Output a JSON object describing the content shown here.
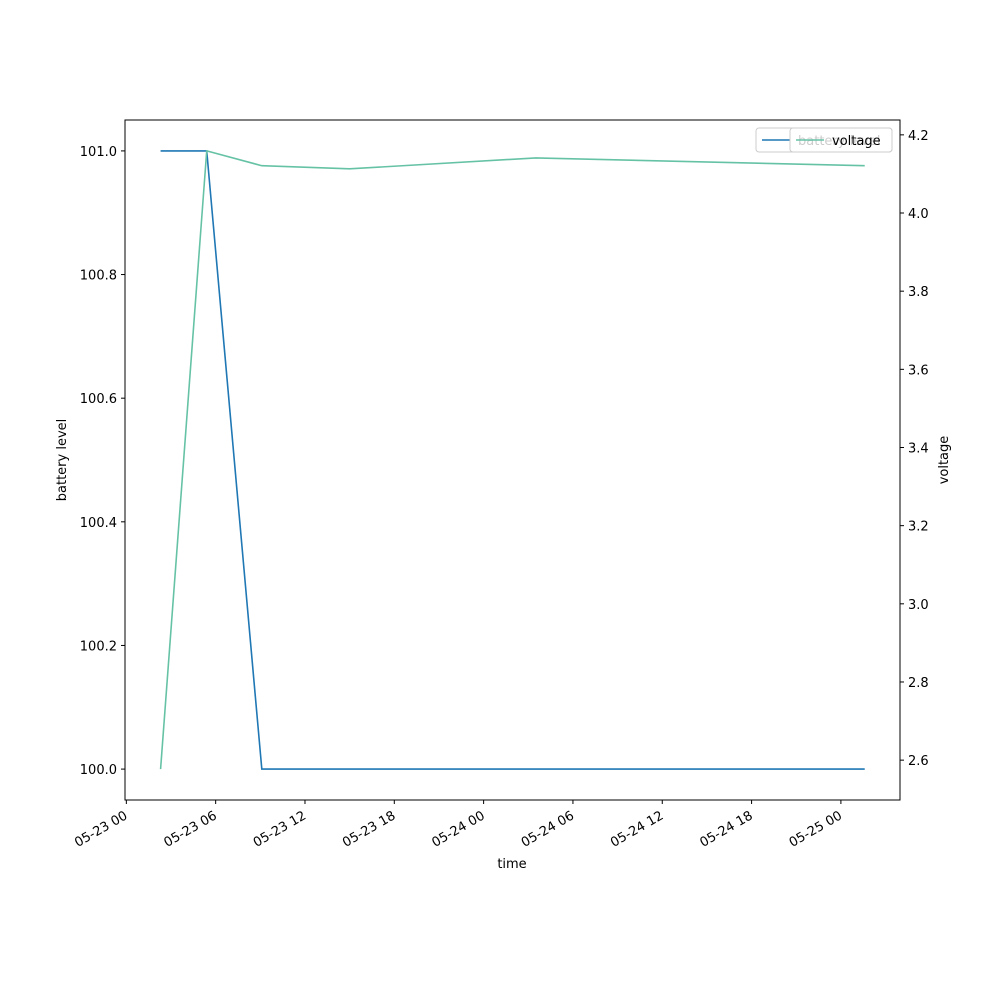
{
  "chart_data": {
    "type": "line",
    "x_label": "time",
    "y_label": "battery level",
    "y2_label": "voltage",
    "x": [
      2.3,
      5.4,
      9.1,
      15.0,
      27.5,
      49.6
    ],
    "series": [
      {
        "name": "battery level",
        "color": "#1f77b4",
        "values": [
          101,
          101,
          100,
          100,
          100,
          100
        ]
      },
      {
        "name": "voltage",
        "color": "#66c2a5",
        "axis": "y2",
        "values": [
          2.577,
          4.159,
          4.121,
          4.113,
          4.141,
          4.121
        ]
      }
    ],
    "xlim": [
      -0.09,
      51.97
    ],
    "xticks": [
      {
        "value": 0,
        "label": "05-23 00"
      },
      {
        "value": 6,
        "label": "05-23 06"
      },
      {
        "value": 12,
        "label": "05-23 12"
      },
      {
        "value": 18,
        "label": "05-23 18"
      },
      {
        "value": 24,
        "label": "05-24 00"
      },
      {
        "value": 30,
        "label": "05-24 06"
      },
      {
        "value": 36,
        "label": "05-24 12"
      },
      {
        "value": 42,
        "label": "05-24 18"
      },
      {
        "value": 48,
        "label": "05-25 00"
      }
    ],
    "ylim": [
      99.95,
      101.05
    ],
    "yticks": [
      {
        "value": 100,
        "label": "100.0"
      },
      100.2,
      100.4,
      100.6,
      100.8,
      {
        "value": 101,
        "label": "101.0"
      }
    ],
    "y2lim": [
      2.498,
      4.238
    ],
    "y2ticks": [
      2.6,
      2.8,
      {
        "value": 3,
        "label": "3.0"
      },
      3.2,
      3.4,
      3.6,
      3.8,
      {
        "value": 4,
        "label": "4.0"
      },
      4.2
    ],
    "legend": "upper right",
    "grid": false
  }
}
